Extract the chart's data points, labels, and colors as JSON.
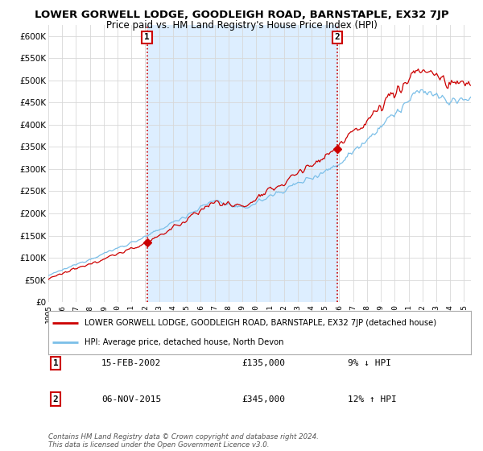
{
  "title": "LOWER GORWELL LODGE, GOODLEIGH ROAD, BARNSTAPLE, EX32 7JP",
  "subtitle": "Price paid vs. HM Land Registry's House Price Index (HPI)",
  "ylabel_ticks": [
    "£0",
    "£50K",
    "£100K",
    "£150K",
    "£200K",
    "£250K",
    "£300K",
    "£350K",
    "£400K",
    "£450K",
    "£500K",
    "£550K",
    "£600K"
  ],
  "ytick_values": [
    0,
    50000,
    100000,
    150000,
    200000,
    250000,
    300000,
    350000,
    400000,
    450000,
    500000,
    550000,
    600000
  ],
  "ylim": [
    0,
    625000
  ],
  "xlim_start": 1995.0,
  "xlim_end": 2025.5,
  "x_ticks": [
    1995,
    1996,
    1997,
    1998,
    1999,
    2000,
    2001,
    2002,
    2003,
    2004,
    2005,
    2006,
    2007,
    2008,
    2009,
    2010,
    2011,
    2012,
    2013,
    2014,
    2015,
    2016,
    2017,
    2018,
    2019,
    2020,
    2021,
    2022,
    2023,
    2024,
    2025
  ],
  "hpi_color": "#7bbfe8",
  "price_color": "#cc0000",
  "marker1_date_x": 2002.12,
  "marker1_price": 135000,
  "marker2_date_x": 2015.84,
  "marker2_price": 345000,
  "vline_color": "#cc0000",
  "shade_color": "#ddeeff",
  "background_color": "#ffffff",
  "grid_color": "#d8d8d8",
  "legend_label_price": "LOWER GORWELL LODGE, GOODLEIGH ROAD, BARNSTAPLE, EX32 7JP (detached house)",
  "legend_label_hpi": "HPI: Average price, detached house, North Devon",
  "table_row1": [
    "1",
    "15-FEB-2002",
    "£135,000",
    "9% ↓ HPI"
  ],
  "table_row2": [
    "2",
    "06-NOV-2015",
    "£345,000",
    "12% ↑ HPI"
  ],
  "footer": "Contains HM Land Registry data © Crown copyright and database right 2024.\nThis data is licensed under the Open Government Licence v3.0."
}
